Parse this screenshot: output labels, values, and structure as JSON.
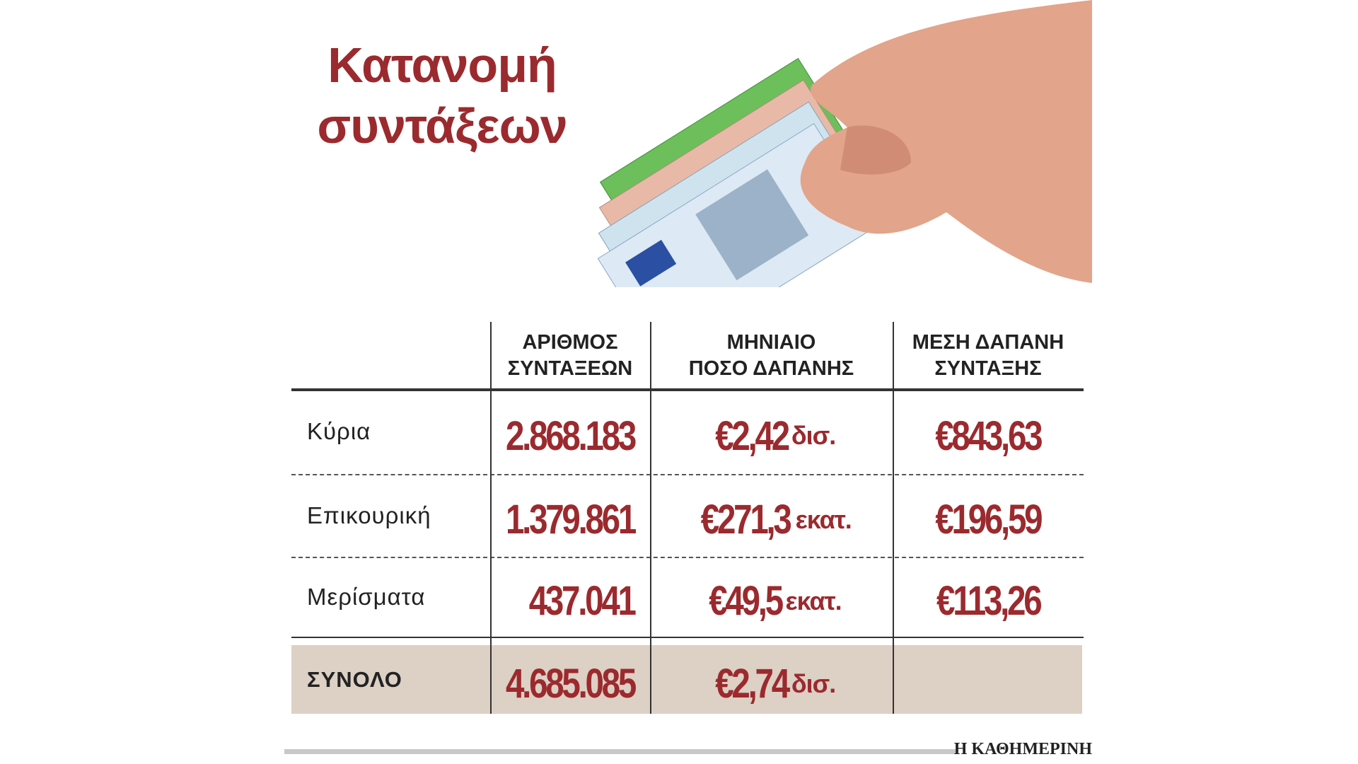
{
  "title": [
    "Κατανομή",
    "συντάξεων"
  ],
  "table": {
    "headers": [
      [
        "ΑΡΙΘΜΟΣ",
        "ΣΥΝΤΑΞΕΩΝ"
      ],
      [
        "ΜΗΝΙΑΙΟ",
        "ΠΟΣΟ ΔΑΠΑΝΗΣ"
      ],
      [
        "ΜΕΣΗ ΔΑΠΑΝΗ",
        "ΣΥΝΤΑΞΗΣ"
      ]
    ],
    "rows": [
      {
        "label": "Κύρια",
        "cells": [
          {
            "amount": "2.868.183"
          },
          {
            "amount": "€2,42",
            "unit": "δισ."
          },
          {
            "amount": "€843,63"
          }
        ]
      },
      {
        "label": "Επικουρική",
        "cells": [
          {
            "amount": "1.379.861"
          },
          {
            "amount": "€271,3",
            "unit": "εκατ."
          },
          {
            "amount": "€196,59"
          }
        ]
      },
      {
        "label": "Μερίσματα",
        "cells": [
          {
            "amount": "437.041"
          },
          {
            "amount": "€49,5",
            "unit": "εκατ."
          },
          {
            "amount": "€113,26"
          }
        ]
      },
      {
        "label": "ΣΥΝΟΛΟ",
        "cells": [
          {
            "amount": "4.685.085"
          },
          {
            "amount": "€2,74",
            "unit": "δισ."
          }
        ]
      }
    ]
  },
  "source": "Η ΚΑΘΗΜΕΡΙΝΗ"
}
